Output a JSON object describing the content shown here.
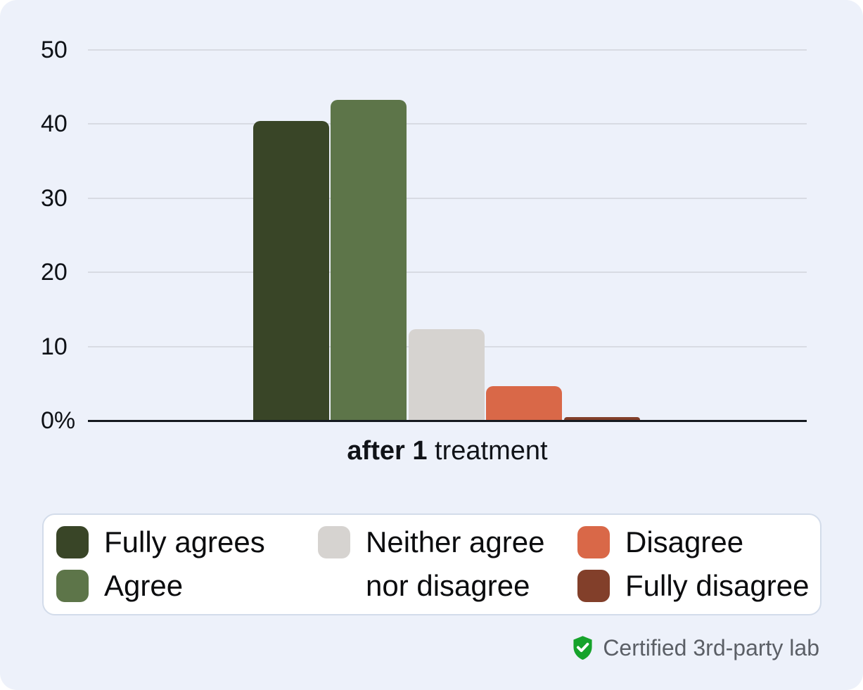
{
  "card": {
    "background": "#edf1fa"
  },
  "chart_data": {
    "type": "bar",
    "categories": [
      "Fully agrees",
      "Agree",
      "Neither agree nor disagree",
      "Disagree",
      "Fully disagree"
    ],
    "values": [
      40.3,
      43.2,
      12.2,
      4.6,
      0.4
    ],
    "colors": [
      "#394527",
      "#5d7549",
      "#d6d3d0",
      "#d96848",
      "#823f2a"
    ],
    "title": "",
    "xlabel_bold": "after 1",
    "xlabel_regular": "treatment",
    "ylabel": "",
    "ylim": [
      0,
      50
    ],
    "yticks": [
      0,
      10,
      20,
      30,
      40,
      50
    ],
    "ytick_labels": [
      "0%",
      "10",
      "20",
      "30",
      "40",
      "50"
    ],
    "grid": true,
    "legend_position": "bottom"
  },
  "legend": {
    "items": [
      {
        "label": "Fully agrees",
        "color": "#394527"
      },
      {
        "label": "Agree",
        "color": "#5d7549"
      },
      {
        "label": "Neither agree\nnor disagree",
        "color": "#d6d3d0"
      },
      {
        "label": "Disagree",
        "color": "#d96848"
      },
      {
        "label": "Fully disagree",
        "color": "#823f2a"
      }
    ]
  },
  "footer": {
    "certified_label": "Certified 3rd-party lab",
    "shield_color": "#16a32b"
  }
}
